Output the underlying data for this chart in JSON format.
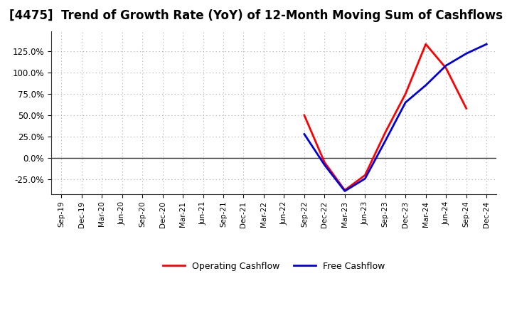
{
  "title": "[4475]  Trend of Growth Rate (YoY) of 12-Month Moving Sum of Cashflows",
  "title_fontsize": 12,
  "ylim": [
    -42,
    148
  ],
  "yticks": [
    -25,
    0,
    25,
    50,
    75,
    100,
    125
  ],
  "background_color": "#ffffff",
  "plot_background_color": "#ffffff",
  "grid_color": "#aaaaaa",
  "x_labels": [
    "Sep-19",
    "Dec-19",
    "Mar-20",
    "Jun-20",
    "Sep-20",
    "Dec-20",
    "Mar-21",
    "Jun-21",
    "Sep-21",
    "Dec-21",
    "Mar-22",
    "Jun-22",
    "Sep-22",
    "Dec-22",
    "Mar-23",
    "Jun-23",
    "Sep-23",
    "Dec-23",
    "Mar-24",
    "Jun-24",
    "Sep-24",
    "Dec-24"
  ],
  "operating_cashflow": {
    "color": "#ff0000",
    "label": "Operating Cashflow",
    "data_values": [
      null,
      null,
      null,
      null,
      null,
      null,
      null,
      null,
      null,
      null,
      null,
      null,
      50.0,
      -5.0,
      -37.5,
      -20.0,
      30.0,
      75.0,
      133.0,
      105.0,
      58.0,
      null
    ]
  },
  "free_cashflow": {
    "color": "#0000dd",
    "label": "Free Cashflow",
    "data_values": [
      null,
      null,
      null,
      null,
      null,
      null,
      null,
      null,
      null,
      null,
      null,
      null,
      28.0,
      -8.0,
      -38.5,
      -24.0,
      20.0,
      65.0,
      85.0,
      108.0,
      122.0,
      133.0
    ]
  },
  "legend_loc": "lower center",
  "line_width": 2.0
}
